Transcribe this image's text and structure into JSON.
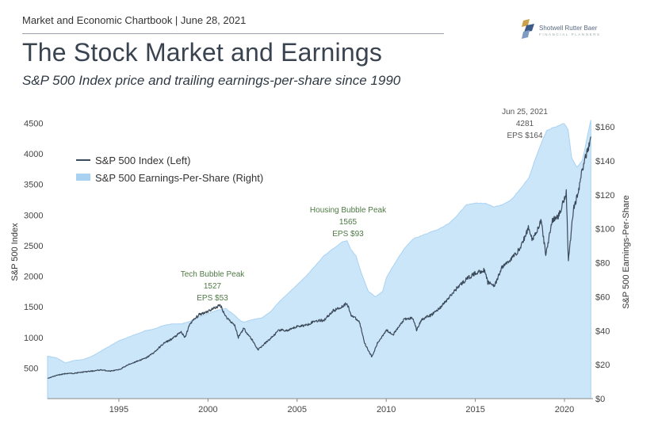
{
  "header": {
    "chartbook": "Market and Economic Chartbook | June 28, 2021",
    "title": "The Stock Market and Earnings",
    "subtitle": "S&P 500 Index price and trailing earnings-per-share since 1990"
  },
  "logo": {
    "name": "Shotwell Rutter Baer",
    "tagline": "FINANCIAL PLANNERS"
  },
  "colors": {
    "index_line": "#3b4a5a",
    "eps_fill": "#cce6f9",
    "eps_edge": "#a9d2f2",
    "annotation": "#4f7a45"
  },
  "chart_data": {
    "type": "line",
    "title": "The Stock Market and Earnings",
    "subtitle": "S&P 500 Index price and trailing earnings-per-share since 1990",
    "x_range": [
      1991.0,
      2021.6
    ],
    "x_ticks": [
      1995,
      2000,
      2005,
      2010,
      2015,
      2020
    ],
    "ylabel_left": "S&P 500 Index",
    "ylabel_right": "S&P 500 Earnings-Per-Share",
    "left_ylim": [
      0,
      4700
    ],
    "left_ticks": [
      500,
      1000,
      1500,
      2000,
      2500,
      3000,
      3500,
      4000,
      4500
    ],
    "right_ylim": [
      0,
      160
    ],
    "right_ticks": [
      "$0",
      "$20",
      "$40",
      "$60",
      "$80",
      "$100",
      "$120",
      "$140",
      "$160"
    ],
    "legend": {
      "position": "top-left",
      "entries": [
        "S&P 500 Index (Left)",
        "S&P 500 Earnings-Per-Share (Right)"
      ]
    },
    "grid": false,
    "series": [
      {
        "name": "S&P 500 Index (Left)",
        "axis": "left",
        "type": "line",
        "points": [
          [
            1991.0,
            330
          ],
          [
            1991.5,
            380
          ],
          [
            1992.0,
            410
          ],
          [
            1992.5,
            415
          ],
          [
            1993.0,
            435
          ],
          [
            1993.5,
            450
          ],
          [
            1994.0,
            470
          ],
          [
            1994.5,
            450
          ],
          [
            1995.0,
            470
          ],
          [
            1995.5,
            550
          ],
          [
            1996.0,
            610
          ],
          [
            1996.5,
            660
          ],
          [
            1997.0,
            760
          ],
          [
            1997.5,
            900
          ],
          [
            1998.0,
            980
          ],
          [
            1998.5,
            1090
          ],
          [
            1998.7,
            990
          ],
          [
            1999.0,
            1230
          ],
          [
            1999.5,
            1370
          ],
          [
            2000.0,
            1430
          ],
          [
            2000.5,
            1500
          ],
          [
            2000.7,
            1527
          ],
          [
            2001.0,
            1340
          ],
          [
            2001.5,
            1200
          ],
          [
            2001.7,
            1000
          ],
          [
            2002.0,
            1150
          ],
          [
            2002.5,
            950
          ],
          [
            2002.8,
            800
          ],
          [
            2003.0,
            850
          ],
          [
            2003.5,
            980
          ],
          [
            2004.0,
            1120
          ],
          [
            2004.5,
            1110
          ],
          [
            2005.0,
            1180
          ],
          [
            2005.5,
            1200
          ],
          [
            2006.0,
            1270
          ],
          [
            2006.5,
            1280
          ],
          [
            2007.0,
            1430
          ],
          [
            2007.5,
            1500
          ],
          [
            2007.8,
            1565
          ],
          [
            2008.0,
            1380
          ],
          [
            2008.5,
            1250
          ],
          [
            2008.8,
            900
          ],
          [
            2009.2,
            680
          ],
          [
            2009.5,
            900
          ],
          [
            2010.0,
            1120
          ],
          [
            2010.4,
            1050
          ],
          [
            2011.0,
            1290
          ],
          [
            2011.5,
            1320
          ],
          [
            2011.7,
            1120
          ],
          [
            2012.0,
            1300
          ],
          [
            2012.5,
            1360
          ],
          [
            2013.0,
            1480
          ],
          [
            2013.5,
            1640
          ],
          [
            2014.0,
            1820
          ],
          [
            2014.5,
            1950
          ],
          [
            2015.0,
            2050
          ],
          [
            2015.5,
            2100
          ],
          [
            2015.7,
            1900
          ],
          [
            2016.1,
            1850
          ],
          [
            2016.5,
            2150
          ],
          [
            2017.0,
            2280
          ],
          [
            2017.5,
            2450
          ],
          [
            2018.0,
            2800
          ],
          [
            2018.2,
            2600
          ],
          [
            2018.7,
            2900
          ],
          [
            2018.95,
            2350
          ],
          [
            2019.3,
            2900
          ],
          [
            2019.7,
            3000
          ],
          [
            2020.1,
            3380
          ],
          [
            2020.22,
            2240
          ],
          [
            2020.5,
            3100
          ],
          [
            2020.8,
            3400
          ],
          [
            2021.0,
            3750
          ],
          [
            2021.2,
            3950
          ],
          [
            2021.4,
            4180
          ],
          [
            2021.48,
            4281
          ]
        ]
      },
      {
        "name": "S&P 500 Earnings-Per-Share (Right)",
        "axis": "right",
        "type": "area",
        "points": [
          [
            1991.0,
            25
          ],
          [
            1991.5,
            24
          ],
          [
            1992.0,
            21
          ],
          [
            1992.5,
            22.5
          ],
          [
            1993.0,
            23
          ],
          [
            1993.5,
            25
          ],
          [
            1994.0,
            28
          ],
          [
            1994.5,
            31
          ],
          [
            1995.0,
            34
          ],
          [
            1995.5,
            36
          ],
          [
            1996.0,
            38
          ],
          [
            1996.5,
            40
          ],
          [
            1997.0,
            41
          ],
          [
            1997.5,
            43
          ],
          [
            1998.0,
            44
          ],
          [
            1998.5,
            44
          ],
          [
            1999.0,
            45.5
          ],
          [
            1999.5,
            48
          ],
          [
            2000.0,
            50
          ],
          [
            2000.5,
            52
          ],
          [
            2001.0,
            53
          ],
          [
            2001.5,
            49
          ],
          [
            2001.8,
            46
          ],
          [
            2002.0,
            45
          ],
          [
            2002.5,
            46.5
          ],
          [
            2003.0,
            47.5
          ],
          [
            2003.5,
            51
          ],
          [
            2004.0,
            57
          ],
          [
            2004.5,
            62
          ],
          [
            2005.0,
            67
          ],
          [
            2005.5,
            72
          ],
          [
            2006.0,
            78
          ],
          [
            2006.5,
            84
          ],
          [
            2007.0,
            88
          ],
          [
            2007.5,
            92
          ],
          [
            2007.8,
            93
          ],
          [
            2008.0,
            88
          ],
          [
            2008.3,
            84
          ],
          [
            2008.6,
            74
          ],
          [
            2009.0,
            63
          ],
          [
            2009.4,
            60
          ],
          [
            2009.8,
            63
          ],
          [
            2010.0,
            71
          ],
          [
            2010.5,
            80
          ],
          [
            2011.0,
            88
          ],
          [
            2011.5,
            94
          ],
          [
            2012.0,
            96
          ],
          [
            2012.5,
            98
          ],
          [
            2013.0,
            100
          ],
          [
            2013.5,
            103
          ],
          [
            2014.0,
            108
          ],
          [
            2014.5,
            114
          ],
          [
            2015.0,
            115
          ],
          [
            2015.5,
            115
          ],
          [
            2016.0,
            113
          ],
          [
            2016.5,
            114
          ],
          [
            2017.0,
            117
          ],
          [
            2017.5,
            123
          ],
          [
            2018.0,
            130
          ],
          [
            2018.5,
            145
          ],
          [
            2019.0,
            158
          ],
          [
            2019.5,
            160
          ],
          [
            2020.0,
            162
          ],
          [
            2020.2,
            158
          ],
          [
            2020.4,
            142
          ],
          [
            2020.7,
            136
          ],
          [
            2021.0,
            140
          ],
          [
            2021.2,
            150
          ],
          [
            2021.4,
            160
          ],
          [
            2021.48,
            164
          ]
        ]
      }
    ],
    "annotations": [
      {
        "lines": [
          "Tech Bubble Peak",
          "1527",
          "EPS $53"
        ],
        "x": 2000.7,
        "value": 1527,
        "color": "green"
      },
      {
        "lines": [
          "Housing Bubble Peak",
          "1565",
          "EPS $93"
        ],
        "x": 2007.8,
        "value": 1565,
        "color": "green"
      },
      {
        "lines": [
          "Jun 25, 2021",
          "4281",
          "EPS $164"
        ],
        "x": 2021.48,
        "value": 4281,
        "color": "gray"
      }
    ]
  }
}
